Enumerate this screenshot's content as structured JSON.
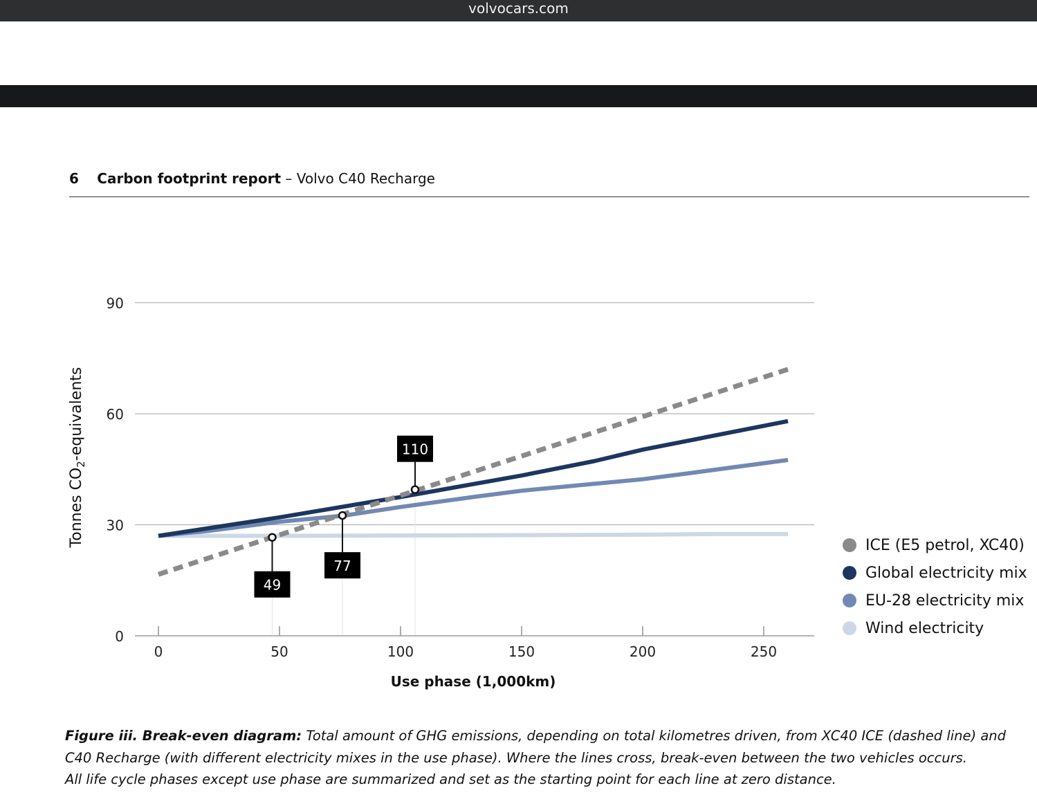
{
  "browser": {
    "url": "volvocars.com"
  },
  "header": {
    "page_number": "6",
    "title": "Carbon footprint report",
    "subtitle": "– Volvo C40 Recharge"
  },
  "chart_data": {
    "type": "line",
    "ylabel_main": "Tonnes CO",
    "ylabel_sub": "2",
    "ylabel_rest": "-equivalents",
    "xlabel": "Use phase (1,000km)",
    "xlim": [
      0,
      270
    ],
    "ylim": [
      0,
      90
    ],
    "x_ticks": [
      0,
      50,
      100,
      150,
      200,
      250
    ],
    "y_ticks": [
      0,
      30,
      60,
      90
    ],
    "grid": "horizontal",
    "legend_position": "right",
    "series": [
      {
        "name": "ICE (E5 petrol, XC40)",
        "color": "#8a8a8a",
        "dashed": true,
        "points": [
          [
            0,
            16.6
          ],
          [
            260,
            72
          ]
        ]
      },
      {
        "name": "Global electricity mix",
        "color": "#1c3660",
        "dashed": false,
        "points": [
          [
            0,
            27
          ],
          [
            50,
            32
          ],
          [
            100,
            37.5
          ],
          [
            150,
            43.3
          ],
          [
            180,
            47.2
          ],
          [
            200,
            50.3
          ],
          [
            260,
            58
          ]
        ]
      },
      {
        "name": "EU-28 electricity mix",
        "color": "#7189b3",
        "dashed": false,
        "points": [
          [
            0,
            27
          ],
          [
            20,
            28.3
          ],
          [
            50,
            30.8
          ],
          [
            77,
            32.5
          ],
          [
            100,
            34.8
          ],
          [
            130,
            37.5
          ],
          [
            150,
            39.2
          ],
          [
            200,
            42.3
          ],
          [
            220,
            44
          ],
          [
            260,
            47.5
          ]
        ]
      },
      {
        "name": "Wind electricity",
        "color": "#cdd8e6",
        "dashed": false,
        "points": [
          [
            0,
            27
          ],
          [
            50,
            27
          ],
          [
            100,
            27.1
          ],
          [
            150,
            27.2
          ],
          [
            200,
            27.3
          ],
          [
            230,
            27.5
          ],
          [
            260,
            27.5
          ]
        ]
      }
    ],
    "annotations": [
      {
        "label": "49",
        "x": 47,
        "y": 26.6,
        "label_position": "below"
      },
      {
        "label": "77",
        "x": 76,
        "y": 32.5,
        "label_position": "below"
      },
      {
        "label": "110",
        "x": 106,
        "y": 39.5,
        "label_position": "above"
      }
    ]
  },
  "caption": {
    "lead": "Figure iii. Break-even diagram:",
    "line1": "Total amount of GHG emissions, depending on total kilometres driven, from XC40 ICE (dashed line) and",
    "line2": "C40 Recharge (with different electricity mixes in the use phase). Where the lines cross, break-even between the two vehicles occurs.",
    "line3": "All life cycle phases except use phase are summarized and set as the starting point for each line at zero distance."
  }
}
